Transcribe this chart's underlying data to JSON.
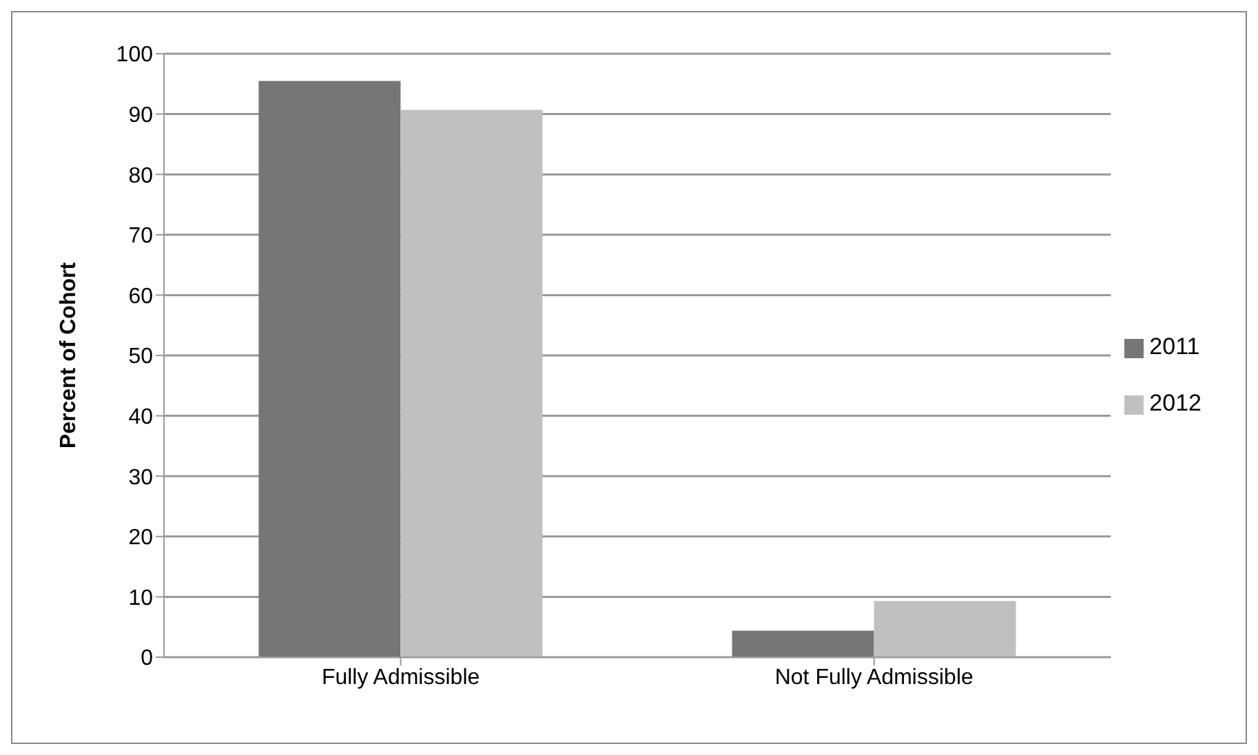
{
  "chart_data": {
    "type": "bar",
    "ylabel": "Percent of Cohort",
    "categories": [
      "Fully Admissible",
      "Not Fully Admissible"
    ],
    "series": [
      {
        "name": "2011",
        "color": "#767676",
        "values": [
          95.5,
          4.4
        ]
      },
      {
        "name": "2012",
        "color": "#c0c0c0",
        "values": [
          90.7,
          9.3
        ]
      }
    ],
    "ylim": [
      0,
      100
    ],
    "yticks": [
      0,
      10,
      20,
      30,
      40,
      50,
      60,
      70,
      80,
      90,
      100
    ],
    "grid": "y",
    "legend": "right"
  }
}
